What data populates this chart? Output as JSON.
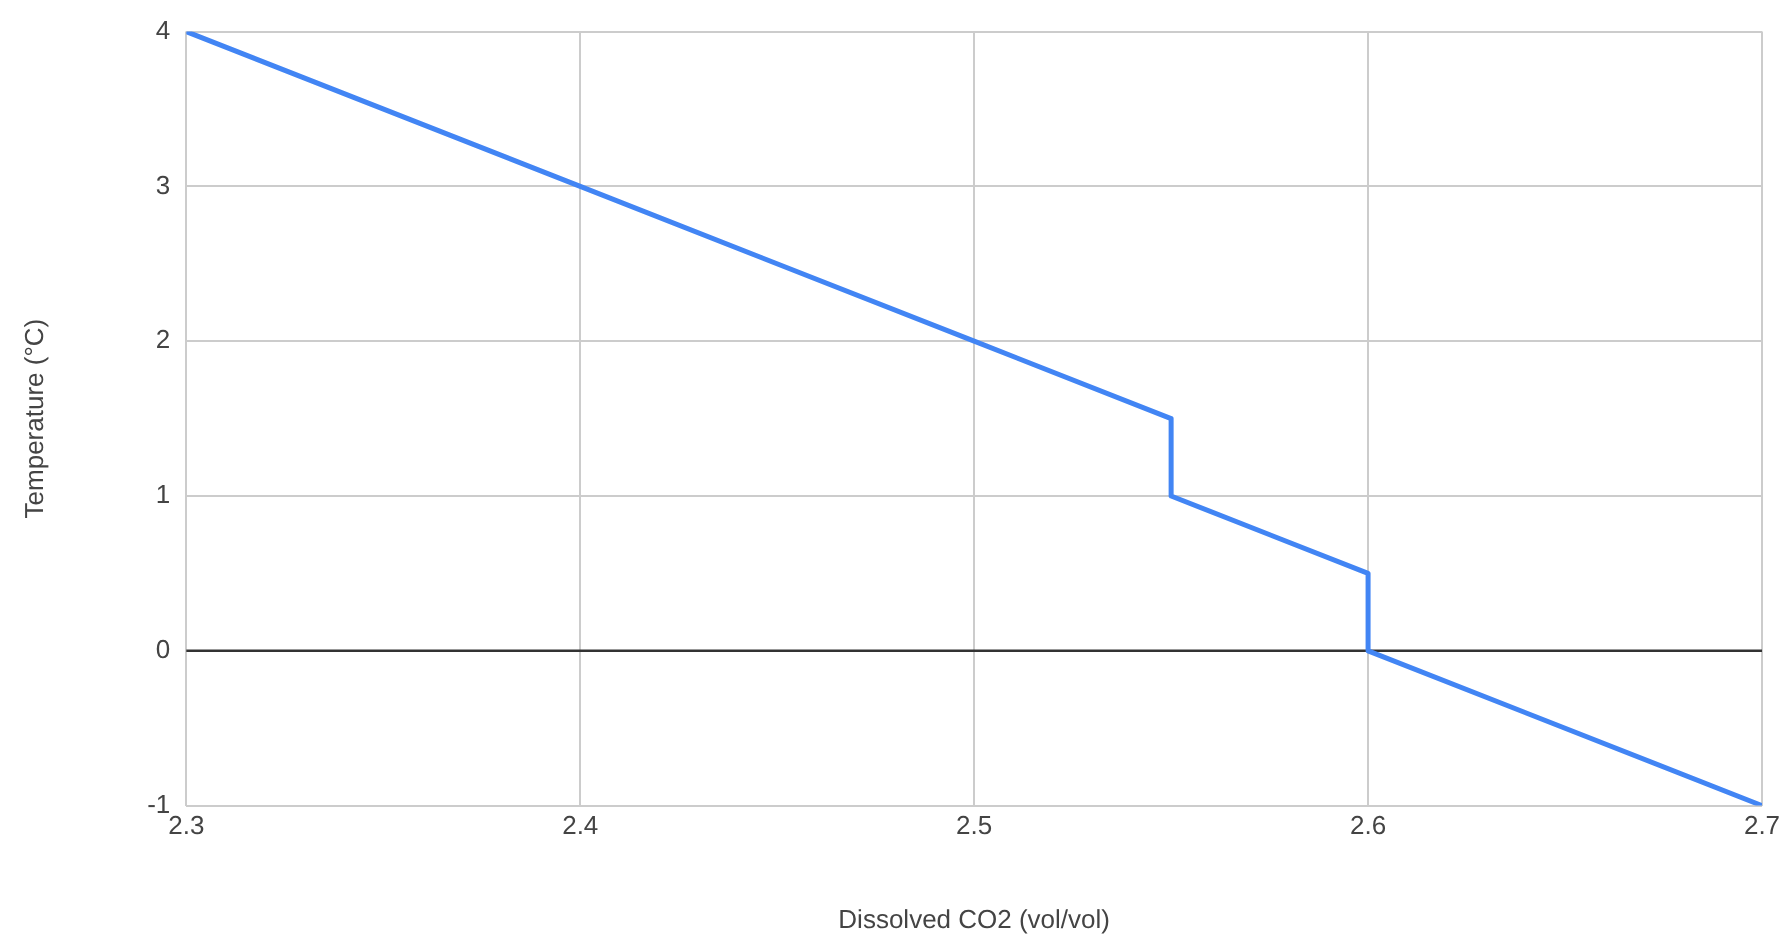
{
  "chart_data": {
    "type": "line",
    "xlabel": "Dissolved CO2 (vol/vol)",
    "ylabel": "Temperature (°C)",
    "x": [
      2.3,
      2.4,
      2.5,
      2.55,
      2.55,
      2.6,
      2.6,
      2.7
    ],
    "series": [
      {
        "color": "#4285f4",
        "values": [
          4,
          3,
          2,
          1.5,
          1,
          0.5,
          0,
          -1
        ]
      }
    ],
    "xlim": [
      2.3,
      2.7
    ],
    "xticks": [
      2.3,
      2.4,
      2.5,
      2.6,
      2.7
    ],
    "ylim": [
      -1,
      4
    ],
    "yticks": [
      -1,
      0,
      1,
      2,
      3,
      4
    ],
    "ref_lines": [
      {
        "axis": "y",
        "value": 0,
        "color": "#333333"
      }
    ],
    "grid": true,
    "legend": false,
    "marker": "none",
    "line_style": "solid"
  }
}
